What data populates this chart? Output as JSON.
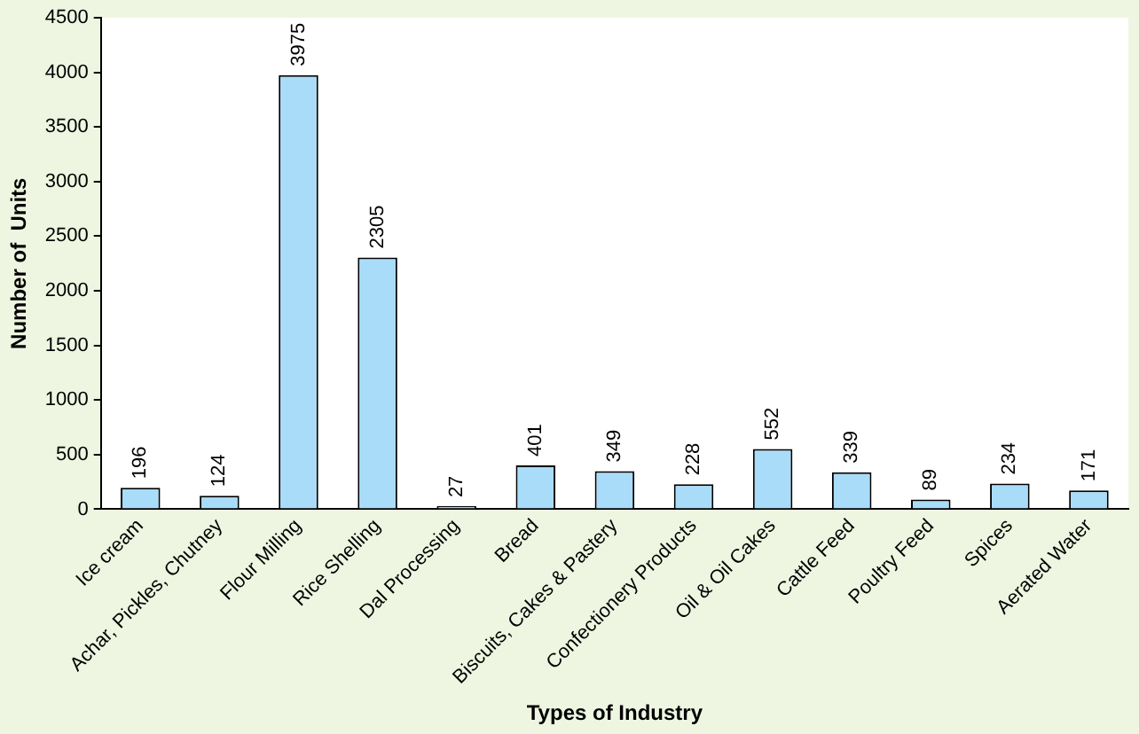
{
  "chart_data": {
    "type": "bar",
    "xlabel": "Types of Industry",
    "ylabel": "Number of  Units",
    "categories": [
      "Ice cream",
      "Achar, Pickles, Chutney",
      "Flour Milling",
      "Rice Shelling",
      "Dal Processing",
      "Bread",
      "Biscuits, Cakes & Pastery",
      "Confectionery Products",
      "Oil & Oil Cakes",
      "Cattle Feed",
      "Poultry Feed",
      "Spices",
      "Aerated Water"
    ],
    "values": [
      196,
      124,
      3975,
      2305,
      27,
      401,
      349,
      228,
      552,
      339,
      89,
      234,
      171
    ],
    "color": "#a8dcf8",
    "ylim": [
      0,
      4500
    ],
    "yticks": [
      0,
      500,
      1000,
      1500,
      2000,
      2500,
      3000,
      3500,
      4000,
      4500
    ],
    "grid": false,
    "legend": false,
    "data_labels": true
  }
}
